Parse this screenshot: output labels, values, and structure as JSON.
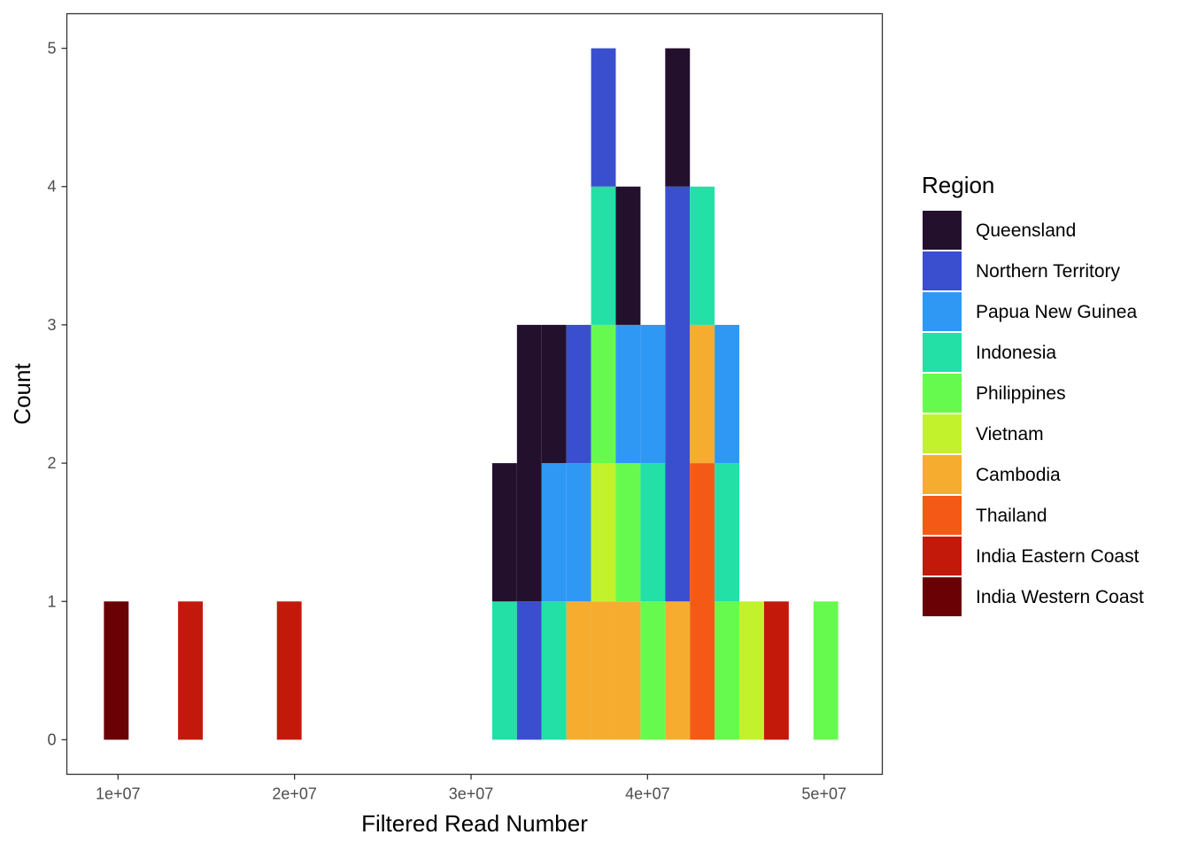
{
  "chart_data": {
    "type": "bar",
    "subtype": "stacked-histogram",
    "xlabel": "Filtered Read Number",
    "ylabel": "Count",
    "x_ticks": [
      {
        "value": 10000000,
        "label": "1e+07"
      },
      {
        "value": 20000000,
        "label": "2e+07"
      },
      {
        "value": 30000000,
        "label": "3e+07"
      },
      {
        "value": 40000000,
        "label": "4e+07"
      },
      {
        "value": 50000000,
        "label": "5e+07"
      }
    ],
    "y_ticks": [
      0,
      1,
      2,
      3,
      4,
      5
    ],
    "xlim": [
      7100000,
      53300000
    ],
    "ylim": [
      -0.25,
      5.25
    ],
    "bin_width": 1400000,
    "grid": false,
    "legend": {
      "title": "Region",
      "position": "right",
      "entries": [
        {
          "name": "Queensland",
          "color": "#23102d"
        },
        {
          "name": "Northern Territory",
          "color": "#3a4fd0"
        },
        {
          "name": "Papua New Guinea",
          "color": "#2f98f5"
        },
        {
          "name": "Indonesia",
          "color": "#22e0a6"
        },
        {
          "name": "Philippines",
          "color": "#67fa4e"
        },
        {
          "name": "Vietnam",
          "color": "#c2f22c"
        },
        {
          "name": "Cambodia",
          "color": "#f6ac2f"
        },
        {
          "name": "Thailand",
          "color": "#f45a16"
        },
        {
          "name": "India Eastern Coast",
          "color": "#c2190b"
        },
        {
          "name": "India Western Coast",
          "color": "#6a0104"
        }
      ]
    },
    "bins": [
      {
        "x": 9900000,
        "stack": [
          {
            "region": "India Western Coast",
            "count": 1
          }
        ]
      },
      {
        "x": 14100000,
        "stack": [
          {
            "region": "India Eastern Coast",
            "count": 1
          }
        ]
      },
      {
        "x": 19700000,
        "stack": [
          {
            "region": "India Eastern Coast",
            "count": 1
          }
        ]
      },
      {
        "x": 31900000,
        "stack": [
          {
            "region": "Indonesia",
            "count": 1
          },
          {
            "region": "Queensland",
            "count": 1
          }
        ]
      },
      {
        "x": 33300000,
        "stack": [
          {
            "region": "Northern Territory",
            "count": 1
          },
          {
            "region": "Queensland",
            "count": 2
          }
        ]
      },
      {
        "x": 34700000,
        "stack": [
          {
            "region": "Indonesia",
            "count": 1
          },
          {
            "region": "Papua New Guinea",
            "count": 1
          },
          {
            "region": "Queensland",
            "count": 1
          }
        ]
      },
      {
        "x": 36100000,
        "stack": [
          {
            "region": "Cambodia",
            "count": 1
          },
          {
            "region": "Papua New Guinea",
            "count": 1
          },
          {
            "region": "Northern Territory",
            "count": 1
          }
        ]
      },
      {
        "x": 37500000,
        "stack": [
          {
            "region": "Cambodia",
            "count": 1
          },
          {
            "region": "Vietnam",
            "count": 1
          },
          {
            "region": "Philippines",
            "count": 1
          },
          {
            "region": "Indonesia",
            "count": 1
          },
          {
            "region": "Northern Territory",
            "count": 1
          }
        ]
      },
      {
        "x": 38900000,
        "stack": [
          {
            "region": "Cambodia",
            "count": 1
          },
          {
            "region": "Philippines",
            "count": 1
          },
          {
            "region": "Papua New Guinea",
            "count": 1
          },
          {
            "region": "Queensland",
            "count": 1
          }
        ]
      },
      {
        "x": 40300000,
        "stack": [
          {
            "region": "Philippines",
            "count": 1
          },
          {
            "region": "Indonesia",
            "count": 1
          },
          {
            "region": "Papua New Guinea",
            "count": 1
          }
        ]
      },
      {
        "x": 41700000,
        "stack": [
          {
            "region": "Cambodia",
            "count": 1
          },
          {
            "region": "Northern Territory",
            "count": 3
          },
          {
            "region": "Queensland",
            "count": 1
          }
        ]
      },
      {
        "x": 43100000,
        "stack": [
          {
            "region": "Thailand",
            "count": 2
          },
          {
            "region": "Cambodia",
            "count": 1
          },
          {
            "region": "Indonesia",
            "count": 1
          }
        ]
      },
      {
        "x": 44500000,
        "stack": [
          {
            "region": "Philippines",
            "count": 1
          },
          {
            "region": "Indonesia",
            "count": 1
          },
          {
            "region": "Papua New Guinea",
            "count": 1
          }
        ]
      },
      {
        "x": 45900000,
        "stack": [
          {
            "region": "Vietnam",
            "count": 1
          }
        ]
      },
      {
        "x": 47300000,
        "stack": [
          {
            "region": "India Eastern Coast",
            "count": 1
          }
        ]
      },
      {
        "x": 50100000,
        "stack": [
          {
            "region": "Philippines",
            "count": 1
          }
        ]
      }
    ]
  }
}
